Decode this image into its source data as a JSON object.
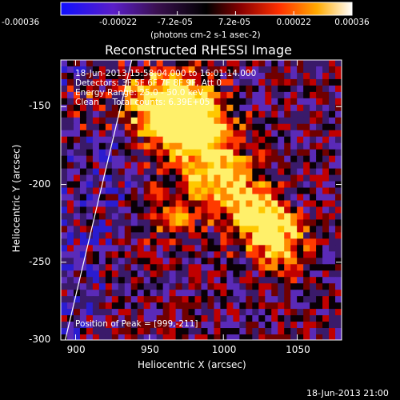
{
  "chart_data": {
    "type": "heatmap",
    "title": "Reconstructed RHESSI Image",
    "xlabel": "Heliocentric X (arcsec)",
    "ylabel": "Heliocentric Y (arcsec)",
    "xlim": [
      890,
      1080
    ],
    "ylim": [
      -300,
      -120
    ],
    "x_ticks": [
      900,
      950,
      1000,
      1050
    ],
    "y_ticks": [
      -150,
      -200,
      -250,
      -300
    ],
    "x_tick_labels": [
      "900",
      "950",
      "1000",
      "1050"
    ],
    "y_tick_labels": [
      "-150",
      "-200",
      "-250",
      "-300"
    ],
    "colorbar": {
      "range": [
        -0.00036,
        0.00036
      ],
      "tick_labels": [
        "-0.00036",
        "-0.00022",
        "-7.2e-05",
        "7.2e-05",
        "0.00022",
        "0.00036"
      ],
      "unit_label": "(photons cm-2 s-1 asec-2)"
    },
    "info_lines": [
      "18-Jun-2013 15:58:04.000 to 16:01:14.000",
      "Detectors: 3F 5F 6F 7F 8F 9F, Att 0",
      "Energy Range: 25.0 - 50.0 keV",
      "Clean     Total counts: 6.39E+05"
    ],
    "peak_label": "Position of Peak = [999,-211]",
    "peak_position": [
      999,
      -211
    ],
    "limb_line": {
      "x": [
        893,
        938
      ],
      "y": [
        -300,
        -120
      ]
    },
    "footer_timestamp": "18-Jun-2013 21:00",
    "colors": {
      "background": "#000000",
      "axes": "#ffffff",
      "colormap": "blue-purple-black-red-yellow-white"
    }
  }
}
